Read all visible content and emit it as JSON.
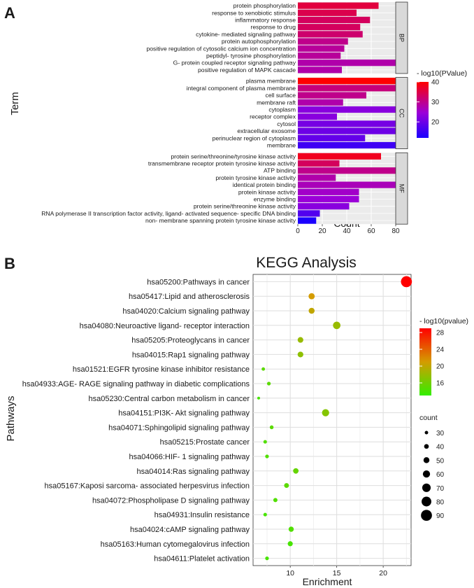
{
  "panel_labels": {
    "a": "A",
    "b": "B"
  },
  "chart_data": [
    {
      "type": "bar",
      "orientation": "horizontal",
      "title": "",
      "xlabel": "Count",
      "ylabel": "Term",
      "xlim": [
        0,
        80
      ],
      "xticks": [
        0,
        20,
        40,
        60,
        80
      ],
      "legend_title": "- log10(PValue)",
      "legend_ticks": [
        40,
        30,
        20
      ],
      "color_range": [
        12,
        40
      ],
      "colors": {
        "low": "#1a00ff",
        "mid": "#9b00d8",
        "high": "#ff0000"
      },
      "facets": [
        {
          "name": "BP",
          "terms": [
            {
              "label": "protein phosphorylation",
              "count": 66,
              "logp": 36
            },
            {
              "label": "response to xenobiotic stimulus",
              "count": 48,
              "logp": 35
            },
            {
              "label": "inflammatory response",
              "count": 59,
              "logp": 34
            },
            {
              "label": "response to drug",
              "count": 51,
              "logp": 34
            },
            {
              "label": "cytokine- mediated signaling pathway",
              "count": 53,
              "logp": 33
            },
            {
              "label": "protein autophosphorylation",
              "count": 41,
              "logp": 31
            },
            {
              "label": "positive regulation of cytosolic calcium ion concentration",
              "count": 38,
              "logp": 30
            },
            {
              "label": "peptidyl- tyrosine phosphorylation",
              "count": 35,
              "logp": 30
            },
            {
              "label": "G- protein coupled receptor signaling pathway",
              "count": 80,
              "logp": 29
            },
            {
              "label": "positive regulation of MAPK cascade",
              "count": 36,
              "logp": 29
            }
          ]
        },
        {
          "name": "CC",
          "terms": [
            {
              "label": "plasma membrane",
              "count": 80,
              "logp": 40
            },
            {
              "label": "integral component of plasma membrane",
              "count": 80,
              "logp": 32
            },
            {
              "label": "cell surface",
              "count": 56,
              "logp": 31
            },
            {
              "label": "membrane raft",
              "count": 37,
              "logp": 29
            },
            {
              "label": "cytoplasm",
              "count": 80,
              "logp": 24
            },
            {
              "label": "receptor complex",
              "count": 32,
              "logp": 24
            },
            {
              "label": "cytosol",
              "count": 80,
              "logp": 22
            },
            {
              "label": "extracellular exosome",
              "count": 80,
              "logp": 21
            },
            {
              "label": "perinuclear region of cytoplasm",
              "count": 55,
              "logp": 20
            },
            {
              "label": "membrane",
              "count": 80,
              "logp": 16
            }
          ]
        },
        {
          "name": "MF",
          "terms": [
            {
              "label": "protein serine/threonine/tyrosine kinase activity",
              "count": 68,
              "logp": 38
            },
            {
              "label": "transmembrane receptor protein tyrosine kinase activity",
              "count": 34,
              "logp": 34
            },
            {
              "label": "ATP binding",
              "count": 80,
              "logp": 31
            },
            {
              "label": "protein tyrosine kinase activity",
              "count": 31,
              "logp": 29
            },
            {
              "label": "identical protein binding",
              "count": 80,
              "logp": 28
            },
            {
              "label": "protein kinase activity",
              "count": 50,
              "logp": 27
            },
            {
              "label": "enzyme binding",
              "count": 50,
              "logp": 26
            },
            {
              "label": "protein serine/threonine kinase activity",
              "count": 42,
              "logp": 24
            },
            {
              "label": "RNA polymerase II transcription factor activity, ligand- activated sequence- specific DNA binding",
              "count": 18,
              "logp": 18
            },
            {
              "label": "non- membrane spanning protein tyrosine kinase activity",
              "count": 15,
              "logp": 12
            }
          ]
        }
      ]
    },
    {
      "type": "scatter",
      "title": "KEGG Analysis",
      "xlabel": "Enrichment",
      "ylabel": "Pathways",
      "xlim": [
        6,
        23
      ],
      "xticks": [
        10,
        15,
        20
      ],
      "color_legend_title": "- log10(pvalue)",
      "color_legend_ticks": [
        28,
        24,
        20,
        16
      ],
      "color_range": [
        13,
        29
      ],
      "colors": {
        "low": "#33ee00",
        "mid": "#d49c00",
        "high": "#ff0000"
      },
      "size_legend_title": "count",
      "size_legend_values": [
        30,
        40,
        50,
        60,
        70,
        80,
        90
      ],
      "pathways": [
        {
          "label": "hsa05200:Pathways in cancer",
          "enrichment": 22.5,
          "count": 90,
          "logp": 29
        },
        {
          "label": "hsa05417:Lipid and atherosclerosis",
          "enrichment": 12.3,
          "count": 52,
          "logp": 21
        },
        {
          "label": "hsa04020:Calcium signaling pathway",
          "enrichment": 12.3,
          "count": 50,
          "logp": 20
        },
        {
          "label": "hsa04080:Neuroactive ligand- receptor interaction",
          "enrichment": 15.0,
          "count": 62,
          "logp": 18
        },
        {
          "label": "hsa05205:Proteoglycans in cancer",
          "enrichment": 11.1,
          "count": 48,
          "logp": 18
        },
        {
          "label": "hsa04015:Rap1 signaling pathway",
          "enrichment": 11.1,
          "count": 48,
          "logp": 17.5
        },
        {
          "label": "hsa01521:EGFR tyrosine kinase inhibitor resistance",
          "enrichment": 7.1,
          "count": 30,
          "logp": 15
        },
        {
          "label": "hsa04933:AGE- RAGE signaling pathway in diabetic complications",
          "enrichment": 7.7,
          "count": 32,
          "logp": 15
        },
        {
          "label": "hsa05230:Central carbon metabolism in cancer",
          "enrichment": 6.6,
          "count": 25,
          "logp": 14
        },
        {
          "label": "hsa04151:PI3K- Akt signaling pathway",
          "enrichment": 13.8,
          "count": 60,
          "logp": 17
        },
        {
          "label": "hsa04071:Sphingolipid signaling pathway",
          "enrichment": 8.0,
          "count": 33,
          "logp": 15
        },
        {
          "label": "hsa05215:Prostate cancer",
          "enrichment": 7.3,
          "count": 31,
          "logp": 14.5
        },
        {
          "label": "hsa04066:HIF- 1 signaling pathway",
          "enrichment": 7.5,
          "count": 32,
          "logp": 14.5
        },
        {
          "label": "hsa04014:Ras signaling pathway",
          "enrichment": 10.6,
          "count": 46,
          "logp": 15.5
        },
        {
          "label": "hsa05167:Kaposi sarcoma- associated herpesvirus infection",
          "enrichment": 9.6,
          "count": 41,
          "logp": 15
        },
        {
          "label": "hsa04072:Phospholipase D signaling pathway",
          "enrichment": 8.4,
          "count": 36,
          "logp": 14.5
        },
        {
          "label": "hsa04931:Insulin resistance",
          "enrichment": 7.3,
          "count": 31,
          "logp": 14
        },
        {
          "label": "hsa04024:cAMP signaling pathway",
          "enrichment": 10.1,
          "count": 44,
          "logp": 14.5
        },
        {
          "label": "hsa05163:Human cytomegalovirus infection",
          "enrichment": 10.0,
          "count": 43,
          "logp": 14
        },
        {
          "label": "hsa04611:Platelet activation",
          "enrichment": 7.5,
          "count": 32,
          "logp": 14
        }
      ]
    }
  ]
}
